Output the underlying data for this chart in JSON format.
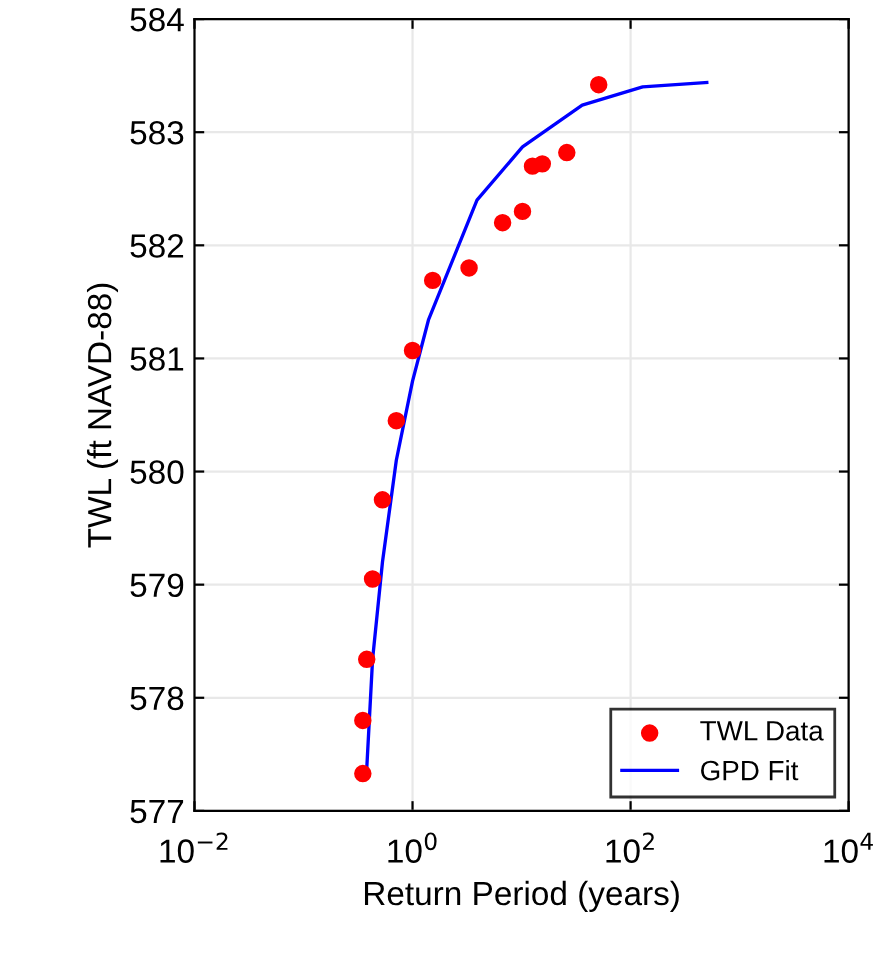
{
  "chart_data": {
    "type": "scatter",
    "xlabel": "Return Period (years)",
    "ylabel": "TWL (ft NAVD-88)",
    "log": "x",
    "xlim": [
      0.01,
      10000
    ],
    "ylim": [
      577,
      584
    ],
    "xticks": [
      {
        "value": 0.01,
        "label": "10$^{−2}$"
      },
      {
        "value": 1,
        "label": "10$^{0}$"
      },
      {
        "value": 100,
        "label": "10$^{2}$"
      },
      {
        "value": 10000,
        "label": "10$^{4}$"
      }
    ],
    "yticks": [
      577,
      578,
      579,
      580,
      581,
      582,
      583,
      584
    ],
    "grid": true,
    "legend": "bottom right",
    "series": [
      {
        "name": "TWL Data",
        "color": "#ff0000",
        "marker": "circle",
        "x": [
          0.35,
          0.35,
          0.38,
          0.43,
          0.53,
          0.71,
          1.0,
          1.53,
          3.3,
          6.7,
          10.2,
          12.6,
          15.5,
          26,
          51
        ],
        "values": [
          577.33,
          577.8,
          578.34,
          579.05,
          579.75,
          580.45,
          581.07,
          581.69,
          581.8,
          582.2,
          582.3,
          582.7,
          582.72,
          582.82,
          583.42
        ]
      },
      {
        "name": "GPD Fit",
        "type": "line",
        "color": "#0000ff",
        "marker": "none",
        "line_style": "solid",
        "x": [
          0.38,
          0.43,
          0.53,
          0.71,
          1.0,
          1.4,
          3.9,
          10.2,
          36,
          129,
          500
        ],
        "values": [
          577.37,
          578.34,
          579.2,
          580.1,
          580.8,
          581.34,
          582.4,
          582.87,
          583.24,
          583.4,
          583.44
        ]
      }
    ]
  }
}
